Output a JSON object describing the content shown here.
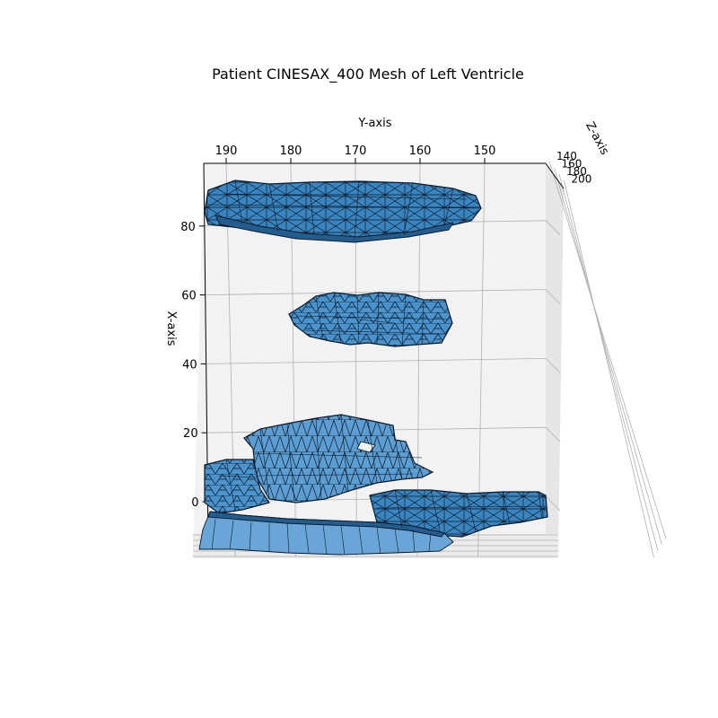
{
  "chart_data": {
    "type": "3d-mesh",
    "title": "Patient CINESAX_400 Mesh of Left Ventricle",
    "xlabel": "X-axis",
    "ylabel": "Y-axis",
    "zlabel": "Z-axis",
    "x_ticks": [
      0,
      20,
      40,
      60,
      80
    ],
    "y_ticks": [
      190,
      180,
      170,
      160,
      150
    ],
    "z_ticks": [
      140,
      160,
      180,
      200
    ],
    "z_tick_labels": [
      "140",
      "160",
      "180",
      "200"
    ],
    "ylim": [
      195,
      140
    ],
    "xlim": [
      -15,
      95
    ],
    "grid": true,
    "colors": {
      "face": "#3a85c0",
      "edge": "#0a1a2a",
      "pane": "#f2f2f2"
    },
    "slices": [
      {
        "name": "",
        "x_level": 85,
        "y_from": 195,
        "y_to": 152
      },
      {
        "name": "",
        "x_level": 57,
        "y_from": 177,
        "y_to": 157
      },
      {
        "name": "",
        "x_level": 18,
        "y_from": 187,
        "y_to": 160
      },
      {
        "name": "",
        "x_level": 0,
        "y_from": 195,
        "y_to": 140
      }
    ]
  }
}
